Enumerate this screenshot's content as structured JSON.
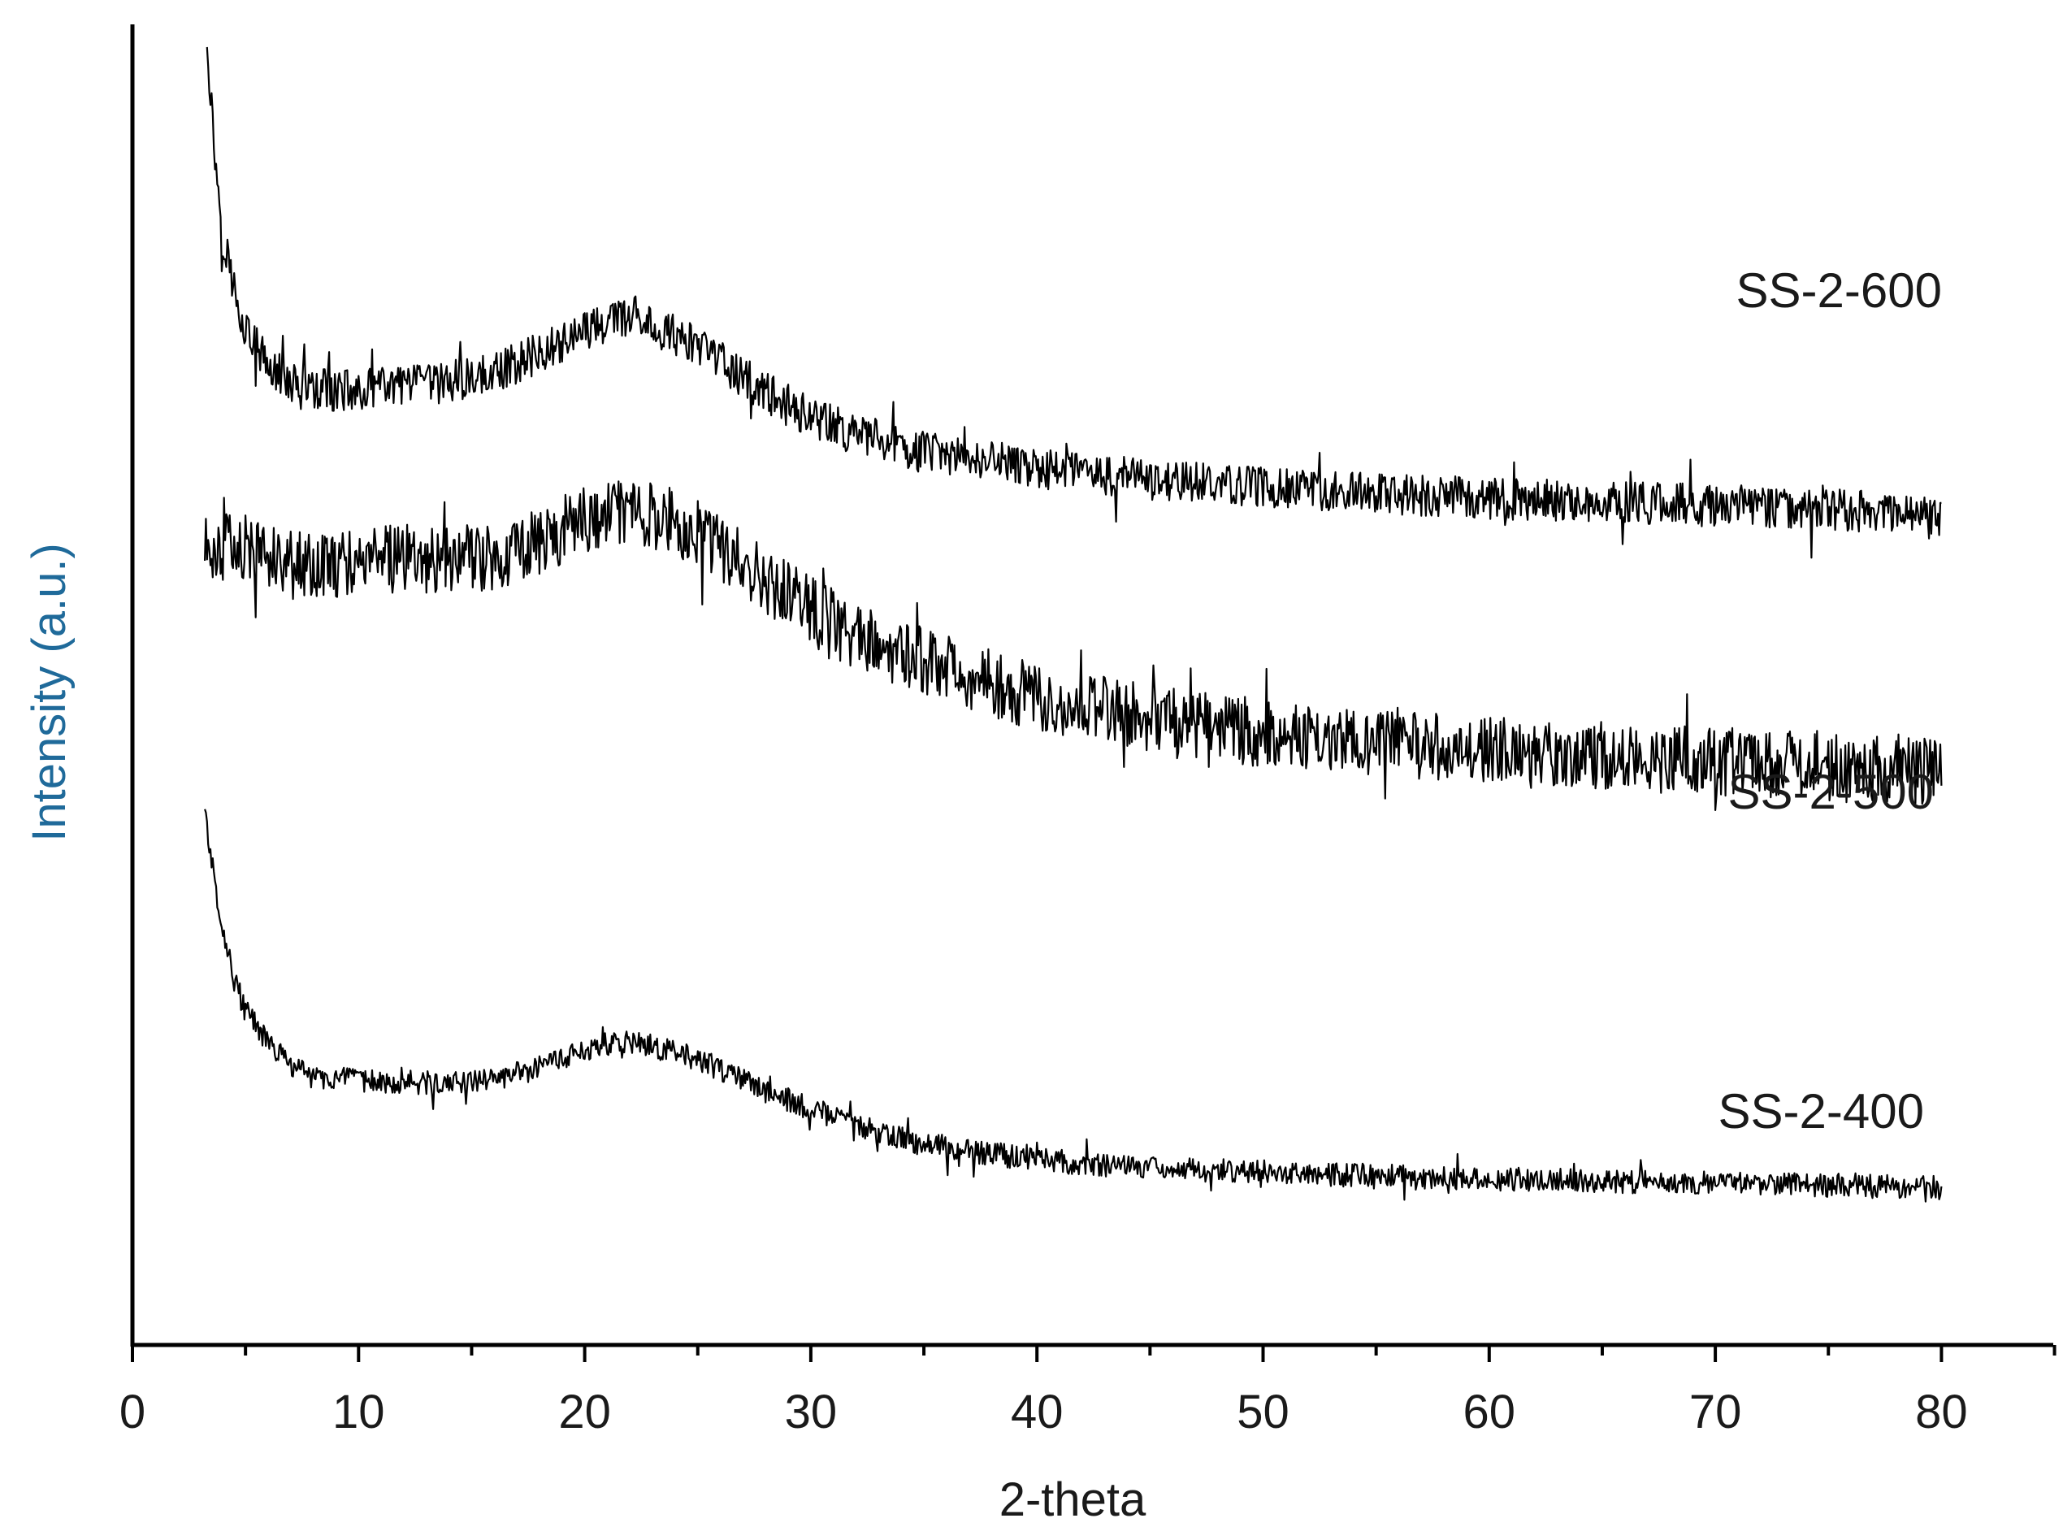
{
  "chart_data": {
    "type": "line",
    "xlabel": "2-theta",
    "ylabel": "Intensity (a.u.)",
    "xlim": [
      0,
      85
    ],
    "x_ticks": [
      "0",
      "10",
      "20",
      "30",
      "40",
      "50",
      "60",
      "70",
      "80"
    ],
    "x_tick_values": [
      0,
      10,
      20,
      30,
      40,
      50,
      60,
      70,
      80
    ],
    "x_minor_tick_step": 5,
    "y_ticks": "none",
    "ylim": [
      0,
      100
    ],
    "grid": false,
    "legend": "none",
    "ylabel_color": "#1f6a9a",
    "line_color": "#000000",
    "series": [
      {
        "name": "SS-2-600",
        "noise": 1.6,
        "points": [
          [
            3.3,
            99
          ],
          [
            3.6,
            91
          ],
          [
            4.0,
            84
          ],
          [
            4.5,
            80
          ],
          [
            5.0,
            77
          ],
          [
            6,
            74
          ],
          [
            7,
            73
          ],
          [
            8,
            72.3
          ],
          [
            10,
            72.3
          ],
          [
            12,
            72.6
          ],
          [
            14,
            72.9
          ],
          [
            16,
            73.6
          ],
          [
            18,
            75.2
          ],
          [
            20,
            76.8
          ],
          [
            22,
            78.0
          ],
          [
            24,
            76.5
          ],
          [
            26,
            74.4
          ],
          [
            28,
            72.1
          ],
          [
            30,
            70.2
          ],
          [
            32,
            69.0
          ],
          [
            35,
            67.6
          ],
          [
            40,
            66.4
          ],
          [
            45,
            65.6
          ],
          [
            50,
            65.0
          ],
          [
            55,
            64.4
          ],
          [
            60,
            64.1
          ],
          [
            65,
            63.8
          ],
          [
            70,
            63.6
          ],
          [
            75,
            63.3
          ],
          [
            80,
            62.9
          ]
        ]
      },
      {
        "name": "SS-2-500",
        "noise": 2.6,
        "points": [
          [
            3.2,
            60.3
          ],
          [
            4,
            60.5
          ],
          [
            6,
            60.0
          ],
          [
            8,
            58.9
          ],
          [
            10,
            59.4
          ],
          [
            12,
            59.6
          ],
          [
            14,
            59.5
          ],
          [
            16,
            59.7
          ],
          [
            18,
            60.9
          ],
          [
            20,
            62.5
          ],
          [
            22,
            63.5
          ],
          [
            24,
            62.3
          ],
          [
            26,
            60.4
          ],
          [
            28,
            58.0
          ],
          [
            30,
            55.6
          ],
          [
            32,
            53.7
          ],
          [
            35,
            51.7
          ],
          [
            40,
            49.0
          ],
          [
            45,
            47.5
          ],
          [
            50,
            46.3
          ],
          [
            55,
            45.5
          ],
          [
            60,
            45.0
          ],
          [
            65,
            44.6
          ],
          [
            70,
            44.2
          ],
          [
            75,
            43.9
          ],
          [
            80,
            43.5
          ]
        ]
      },
      {
        "name": "SS-2-400",
        "noise": 0.9,
        "points": [
          [
            3.2,
            40.8
          ],
          [
            3.5,
            36.5
          ],
          [
            4.0,
            31.5
          ],
          [
            4.5,
            27.7
          ],
          [
            5,
            25.3
          ],
          [
            6,
            22.9
          ],
          [
            7,
            21.2
          ],
          [
            8,
            20.3
          ],
          [
            10,
            20.0
          ],
          [
            12,
            19.9
          ],
          [
            14,
            19.8
          ],
          [
            16,
            20.1
          ],
          [
            18,
            21.0
          ],
          [
            20,
            22.3
          ],
          [
            22,
            23.0
          ],
          [
            24,
            22.2
          ],
          [
            26,
            20.9
          ],
          [
            28,
            19.2
          ],
          [
            30,
            17.9
          ],
          [
            32,
            16.6
          ],
          [
            35,
            15.2
          ],
          [
            40,
            14.0
          ],
          [
            45,
            13.4
          ],
          [
            50,
            13.1
          ],
          [
            55,
            12.8
          ],
          [
            60,
            12.6
          ],
          [
            65,
            12.4
          ],
          [
            70,
            12.3
          ],
          [
            75,
            12.1
          ],
          [
            80,
            11.9
          ]
        ]
      }
    ]
  }
}
